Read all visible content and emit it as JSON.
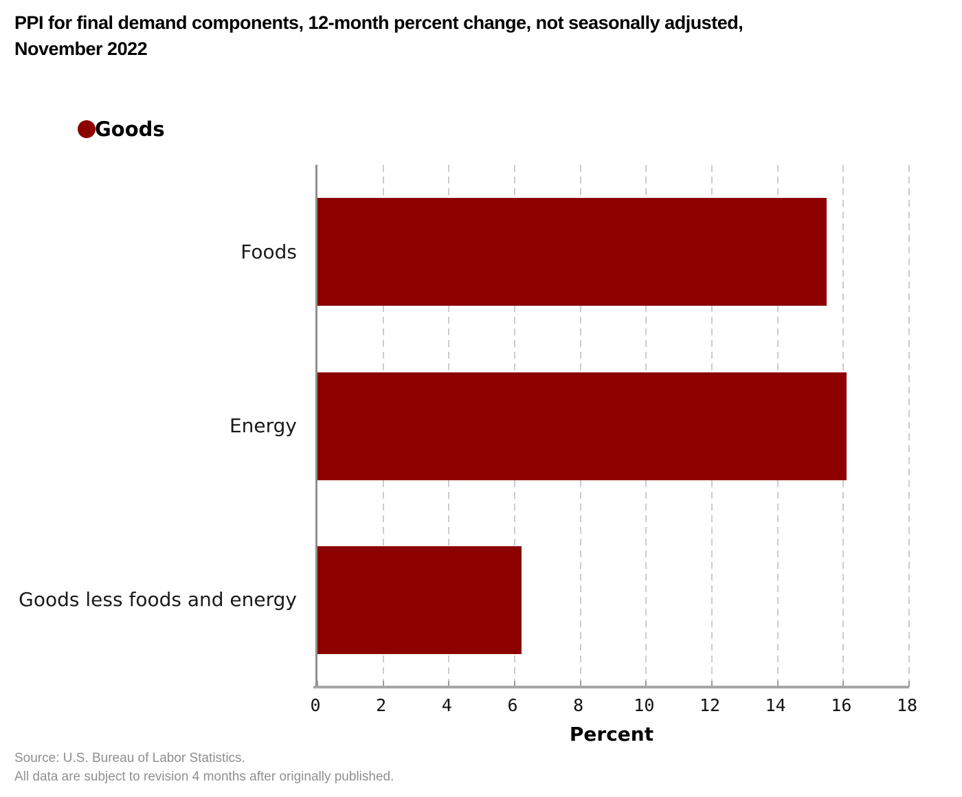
{
  "title": "PPI for final demand components, 12-month percent change, not seasonally adjusted,\nNovember 2022",
  "legend": {
    "label": "Goods",
    "color": "#8C0000"
  },
  "chart_data": {
    "type": "bar",
    "orientation": "horizontal",
    "title": "PPI for final demand components, 12-month percent change, not seasonally adjusted, November 2022",
    "categories": [
      "Foods",
      "Energy",
      "Goods less foods and energy"
    ],
    "series": [
      {
        "name": "Goods",
        "values": [
          15.5,
          16.1,
          6.2
        ]
      }
    ],
    "xlabel": "Percent",
    "ylabel": "",
    "xlim": [
      0,
      18
    ],
    "xticks": [
      0,
      2,
      4,
      6,
      8,
      10,
      12,
      14,
      16,
      18
    ],
    "grid": "vertical-dashed",
    "bar_color": "#8C0000",
    "gridline_color": "#cccccc",
    "legend_position": "top-left"
  },
  "footer": {
    "source": "Source: U.S. Bureau of Labor Statistics.",
    "note": "All data are subject to revision 4 months after originally published."
  }
}
